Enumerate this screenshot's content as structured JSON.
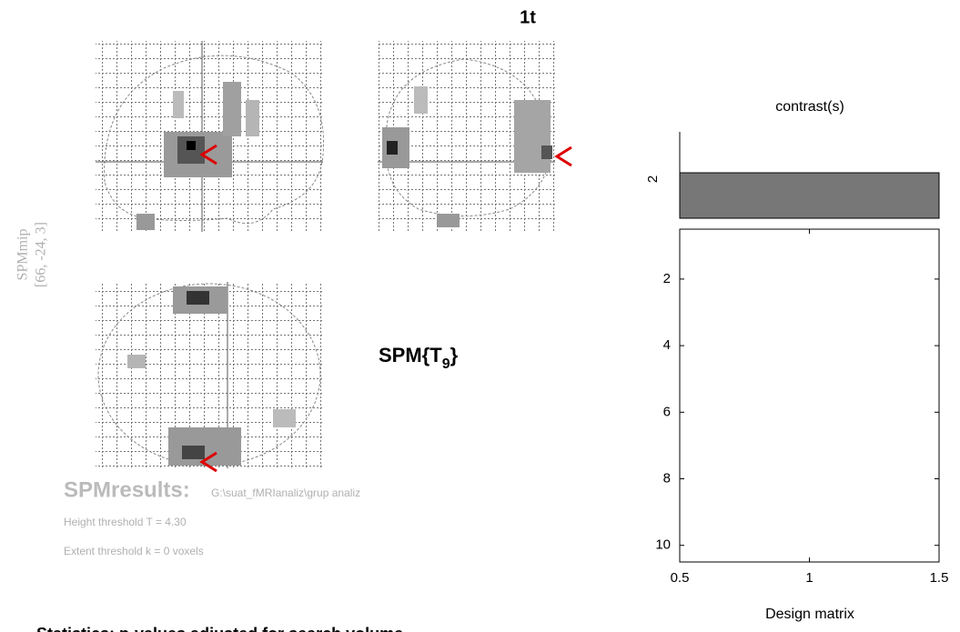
{
  "title": "1t",
  "mip": {
    "label": "SPMmip",
    "coordinates": "[66, -24, 3]"
  },
  "statistic": {
    "text": "SPM{T",
    "subscript": "9",
    "close": "}"
  },
  "results": {
    "heading": "SPMresults:",
    "path": "G:\\suat_fMRIanaliz\\grup analiz",
    "height_threshold": "Height threshold T = 4.30",
    "extent_threshold": "Extent threshold k = 0 voxels"
  },
  "footer": "Statistics: p-values adjusted for search volume",
  "contrast": {
    "title": "contrast(s)",
    "number": 2,
    "weights": [
      1
    ]
  },
  "design_matrix": {
    "xlabel": "Design matrix",
    "xlim": [
      0.5,
      1.5
    ],
    "xticks": [
      0.5,
      1,
      1.5
    ],
    "ylim": [
      0.5,
      10.5
    ],
    "yticks": [
      2,
      4,
      6,
      8,
      10
    ]
  }
}
